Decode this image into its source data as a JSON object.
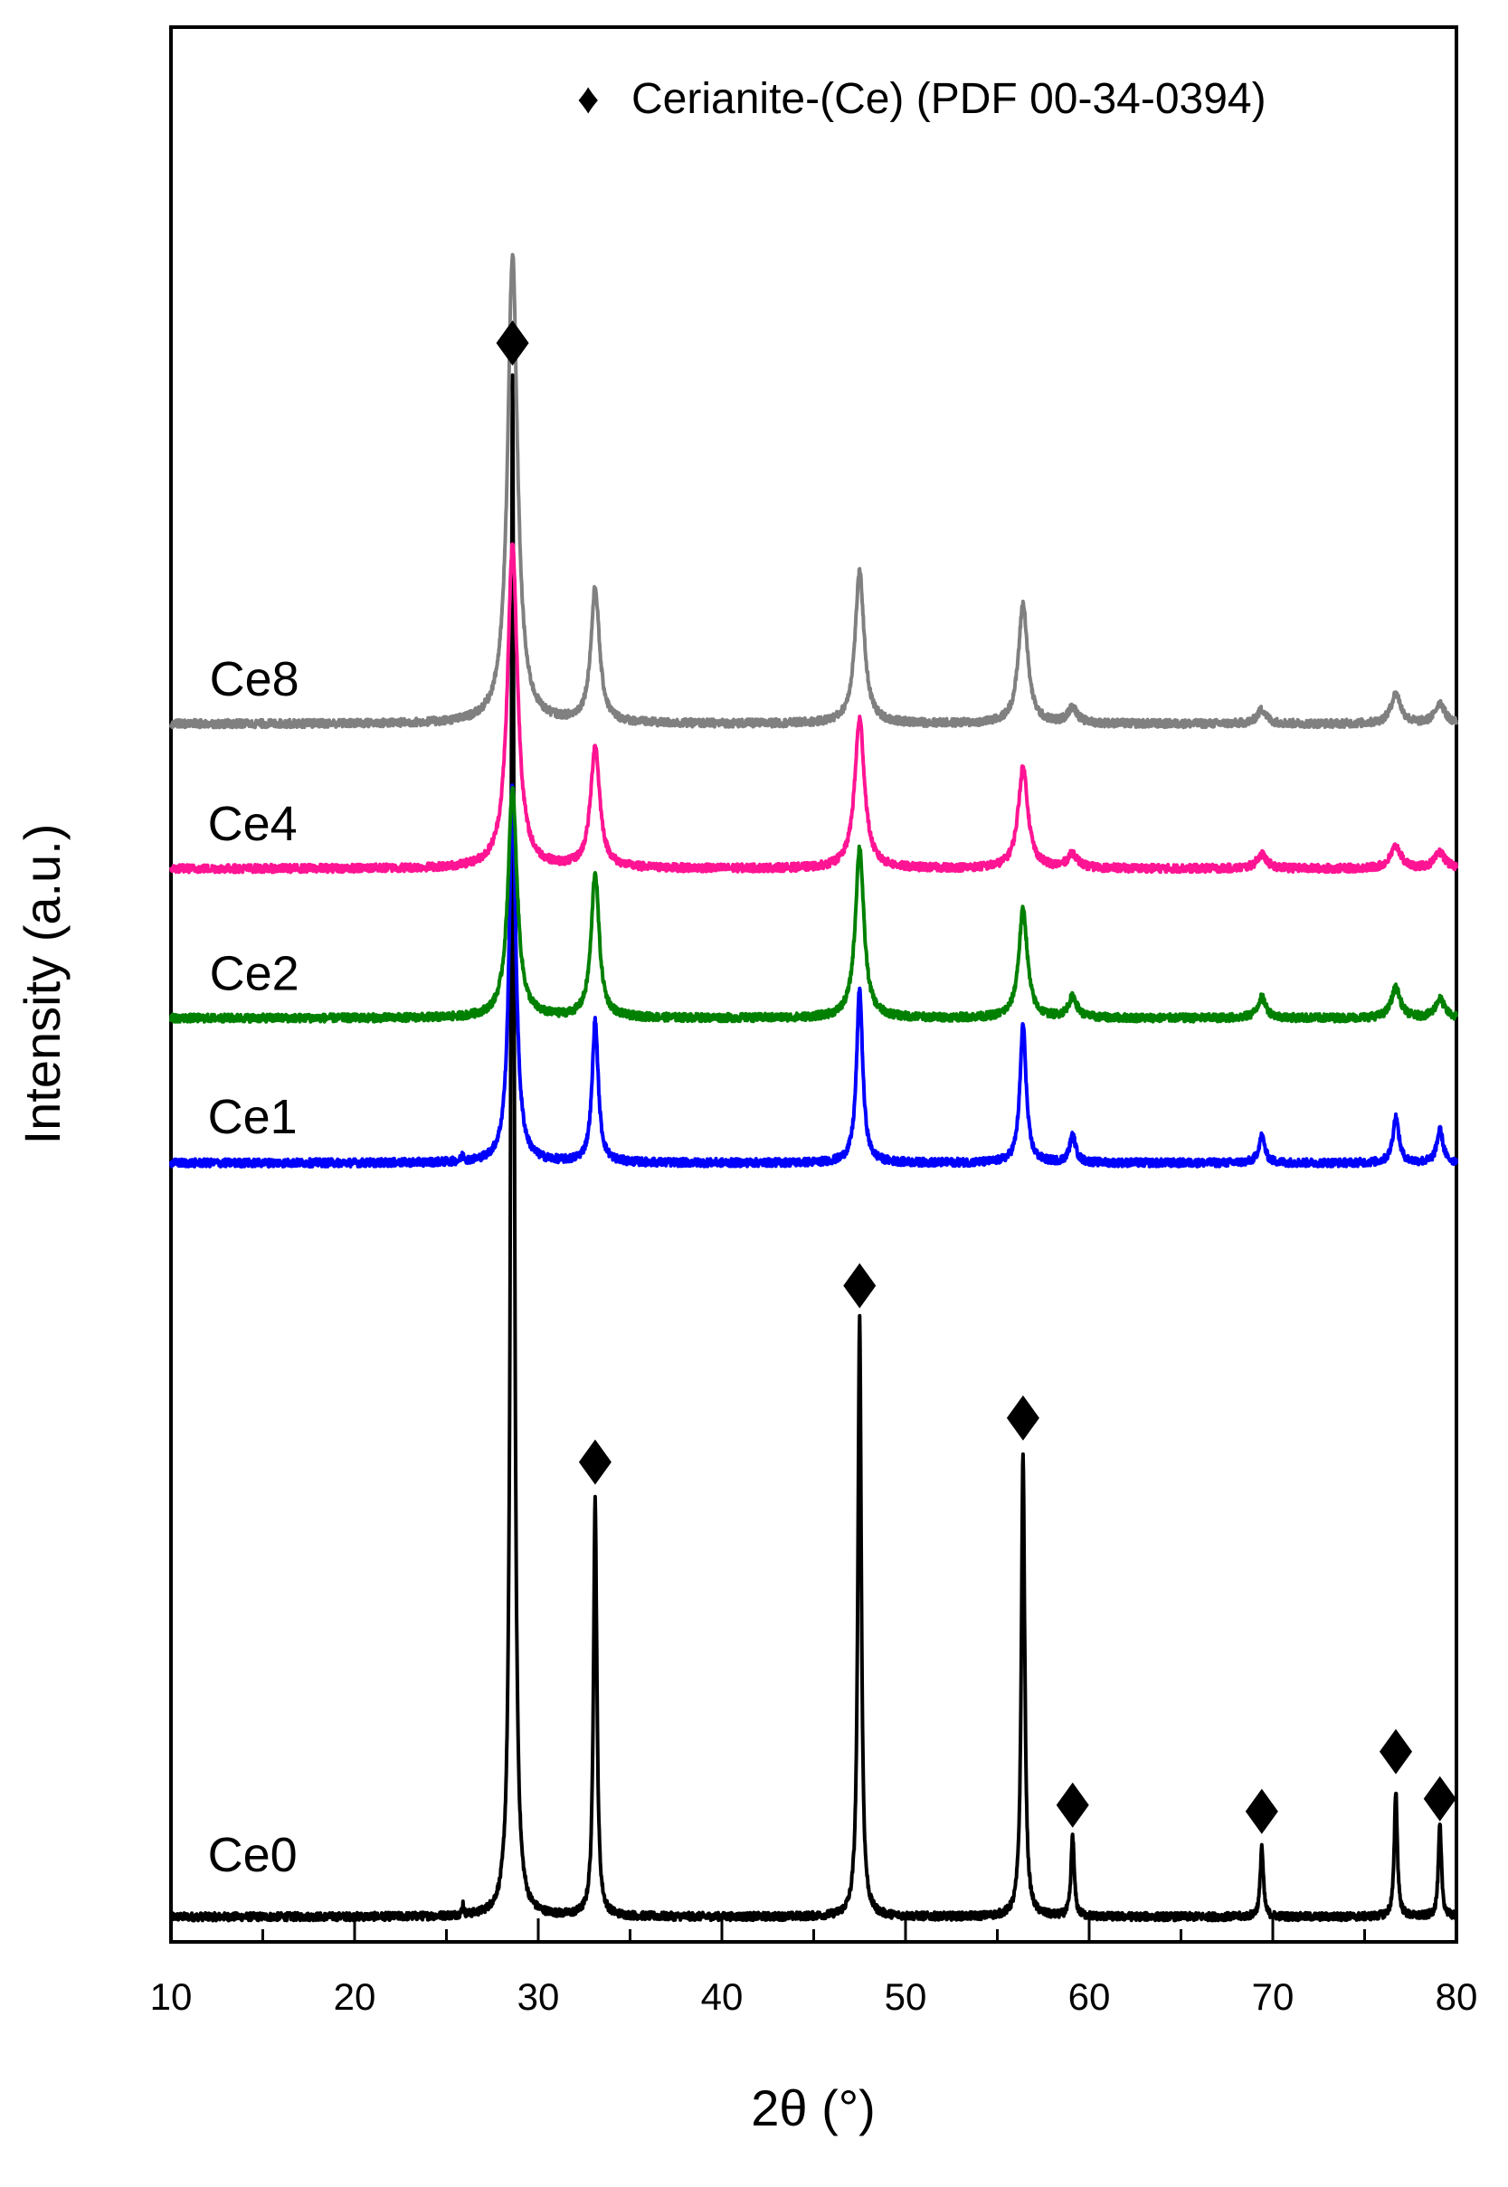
{
  "chart_data": {
    "type": "line",
    "title": "",
    "xlabel": "2θ (°)",
    "ylabel": "Intensity (a.u.)",
    "xlim": [
      10,
      80
    ],
    "xticks": [
      10,
      20,
      30,
      40,
      50,
      60,
      70,
      80
    ],
    "xtick_labels": [
      "10",
      "20",
      "30",
      "40",
      "50",
      "60",
      "70",
      "80"
    ],
    "ylim": [
      0,
      100
    ],
    "yticks": [],
    "grid": false,
    "legend": {
      "position": "top-right",
      "symbol": "♦",
      "label": "Cerianite-(Ce) (PDF 00-34-0394)"
    },
    "peak_positions": [
      28.6,
      33.1,
      47.5,
      56.4,
      59.1,
      69.4,
      76.7,
      79.1
    ],
    "peak_markers": [
      {
        "x": 28.6,
        "y": 100.5
      },
      {
        "x": 33.1,
        "y": 29.4
      },
      {
        "x": 47.5,
        "y": 40.6
      },
      {
        "x": 56.4,
        "y": 32.2
      },
      {
        "x": 59.1,
        "y": 7.6
      },
      {
        "x": 69.4,
        "y": 7.2
      },
      {
        "x": 76.7,
        "y": 11.0
      },
      {
        "x": 79.1,
        "y": 8.0
      }
    ],
    "series": [
      {
        "name": "Ce0",
        "color": "#000000",
        "baseline": 0.5,
        "noise": 0.25,
        "peaks": [
          {
            "x": 25.9,
            "h": 0.7,
            "w": 0.05
          },
          {
            "x": 28.6,
            "h": 98.0,
            "w": 0.11
          },
          {
            "x": 33.1,
            "h": 26.5,
            "w": 0.11
          },
          {
            "x": 47.5,
            "h": 38.0,
            "w": 0.11
          },
          {
            "x": 56.4,
            "h": 29.5,
            "w": 0.11
          },
          {
            "x": 59.1,
            "h": 5.2,
            "w": 0.1
          },
          {
            "x": 69.4,
            "h": 4.5,
            "w": 0.1
          },
          {
            "x": 76.7,
            "h": 8.0,
            "w": 0.1
          },
          {
            "x": 79.1,
            "h": 5.8,
            "w": 0.1
          }
        ],
        "label_x": 12,
        "label_y": 3.4
      },
      {
        "name": "Ce1",
        "color": "#0000ff",
        "baseline": 48.4,
        "noise": 0.25,
        "peaks": [
          {
            "x": 25.9,
            "h": 0.4,
            "w": 0.08
          },
          {
            "x": 28.6,
            "h": 24.0,
            "w": 0.22
          },
          {
            "x": 33.1,
            "h": 9.0,
            "w": 0.2
          },
          {
            "x": 47.5,
            "h": 11.0,
            "w": 0.2
          },
          {
            "x": 56.4,
            "h": 8.8,
            "w": 0.2
          },
          {
            "x": 59.1,
            "h": 1.7,
            "w": 0.2
          },
          {
            "x": 69.4,
            "h": 1.7,
            "w": 0.2
          },
          {
            "x": 76.7,
            "h": 2.9,
            "w": 0.2
          },
          {
            "x": 79.1,
            "h": 2.1,
            "w": 0.2
          }
        ],
        "label_x": 12,
        "label_y": 50.3
      },
      {
        "name": "Ce2",
        "color": "#008000",
        "baseline": 57.6,
        "noise": 0.25,
        "peaks": [
          {
            "x": 28.6,
            "h": 14.5,
            "w": 0.3
          },
          {
            "x": 33.1,
            "h": 9.2,
            "w": 0.26
          },
          {
            "x": 47.5,
            "h": 10.8,
            "w": 0.28
          },
          {
            "x": 56.4,
            "h": 6.9,
            "w": 0.28
          },
          {
            "x": 59.1,
            "h": 1.3,
            "w": 0.28
          },
          {
            "x": 69.4,
            "h": 1.3,
            "w": 0.28
          },
          {
            "x": 76.7,
            "h": 1.9,
            "w": 0.3
          },
          {
            "x": 79.1,
            "h": 1.2,
            "w": 0.3
          }
        ],
        "label_x": 12.1,
        "label_y": 59.4
      },
      {
        "name": "Ce4",
        "color": "#ff1493",
        "baseline": 67.1,
        "noise": 0.25,
        "peaks": [
          {
            "x": 28.6,
            "h": 20.5,
            "w": 0.33
          },
          {
            "x": 33.1,
            "h": 7.7,
            "w": 0.3
          },
          {
            "x": 47.5,
            "h": 9.5,
            "w": 0.32
          },
          {
            "x": 56.4,
            "h": 6.4,
            "w": 0.32
          },
          {
            "x": 59.1,
            "h": 0.9,
            "w": 0.32
          },
          {
            "x": 69.4,
            "h": 0.9,
            "w": 0.32
          },
          {
            "x": 76.7,
            "h": 1.4,
            "w": 0.34
          },
          {
            "x": 79.1,
            "h": 1.0,
            "w": 0.34
          }
        ],
        "label_x": 12,
        "label_y": 68.9
      },
      {
        "name": "Ce8",
        "color": "#808080",
        "baseline": 76.3,
        "noise": 0.25,
        "peaks": [
          {
            "x": 28.6,
            "h": 29.8,
            "w": 0.32
          },
          {
            "x": 33.1,
            "h": 8.5,
            "w": 0.28
          },
          {
            "x": 47.5,
            "h": 9.6,
            "w": 0.3
          },
          {
            "x": 56.4,
            "h": 7.6,
            "w": 0.3
          },
          {
            "x": 59.1,
            "h": 1.0,
            "w": 0.3
          },
          {
            "x": 69.4,
            "h": 0.9,
            "w": 0.3
          },
          {
            "x": 76.7,
            "h": 1.9,
            "w": 0.32
          },
          {
            "x": 79.1,
            "h": 1.3,
            "w": 0.32
          }
        ],
        "label_x": 12.1,
        "label_y": 78.1
      }
    ]
  }
}
